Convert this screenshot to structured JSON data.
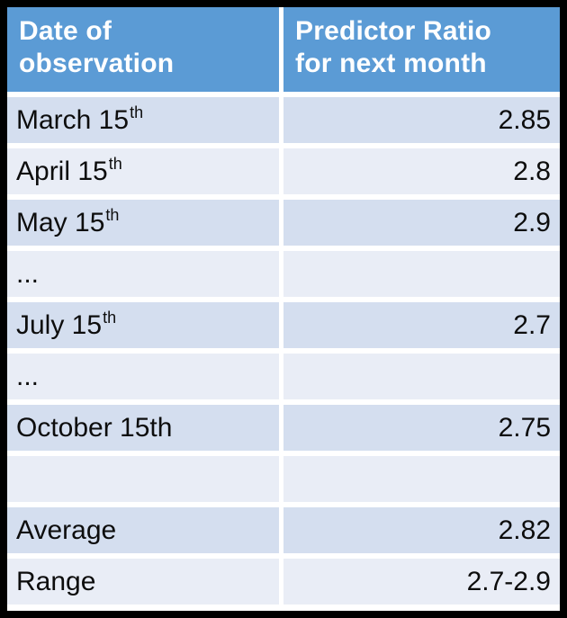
{
  "chart_data": {
    "type": "table",
    "columns": [
      "Date of observation",
      "Predictor Ratio for next month"
    ],
    "rows": [
      [
        "March 15th",
        "2.85"
      ],
      [
        "April 15th",
        "2.8"
      ],
      [
        "May 15th",
        "2.9"
      ],
      [
        "...",
        ""
      ],
      [
        "July 15th",
        "2.7"
      ],
      [
        "...",
        ""
      ],
      [
        "October 15th",
        "2.75"
      ],
      [
        "",
        ""
      ],
      [
        "Average",
        "2.82"
      ],
      [
        "Range",
        "2.7-2.9"
      ]
    ]
  },
  "table": {
    "columns": [
      {
        "header": "Date of\nobservation"
      },
      {
        "header": "Predictor Ratio\nfor next month"
      }
    ],
    "rows": [
      {
        "label": "March 15",
        "sup": "th",
        "value": "2.85"
      },
      {
        "label": "April 15",
        "sup": "th",
        "value": "2.8"
      },
      {
        "label": "May 15",
        "sup": "th",
        "value": "2.9"
      },
      {
        "label": "...",
        "sup": "",
        "value": ""
      },
      {
        "label": "July 15",
        "sup": "th",
        "value": "2.7"
      },
      {
        "label": "...",
        "sup": "",
        "value": ""
      },
      {
        "label": "October 15th",
        "sup": "",
        "value": "2.75"
      },
      {
        "label": "",
        "sup": "",
        "value": ""
      },
      {
        "label": "Average",
        "sup": "",
        "value": "2.82"
      },
      {
        "label": "Range",
        "sup": "",
        "value": "2.7-2.9"
      }
    ]
  },
  "colors": {
    "header_bg": "#5B9BD5",
    "header_text": "#FFFFFF",
    "row_dark": "#D4DEEF",
    "row_light": "#E9EDF6",
    "border": "#000000",
    "text": "#0D0D0D"
  }
}
